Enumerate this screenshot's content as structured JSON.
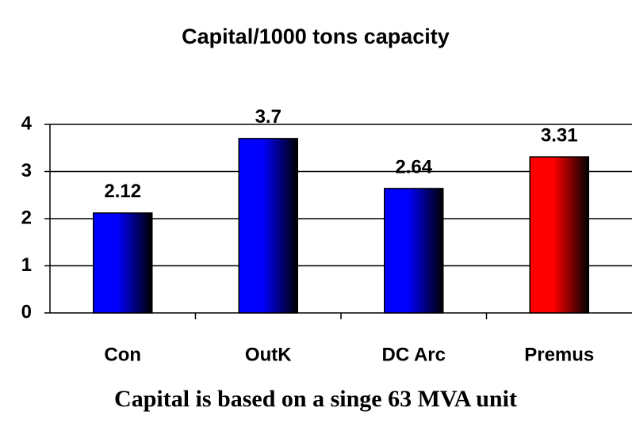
{
  "chart_data": {
    "type": "bar",
    "title": "Capital/1000 tons capacity",
    "categories": [
      "Con",
      "OutK",
      "DC Arc",
      "Premus"
    ],
    "values": [
      2.12,
      3.7,
      2.64,
      3.31
    ],
    "colors": [
      "#0000ff",
      "#0000ff",
      "#0000ff",
      "#ff0000"
    ],
    "ylim": [
      0,
      4
    ],
    "yticks": [
      0,
      1,
      2,
      3,
      4
    ],
    "grid": true,
    "annotation": "Capital is based on a singe 63 MVA unit"
  }
}
